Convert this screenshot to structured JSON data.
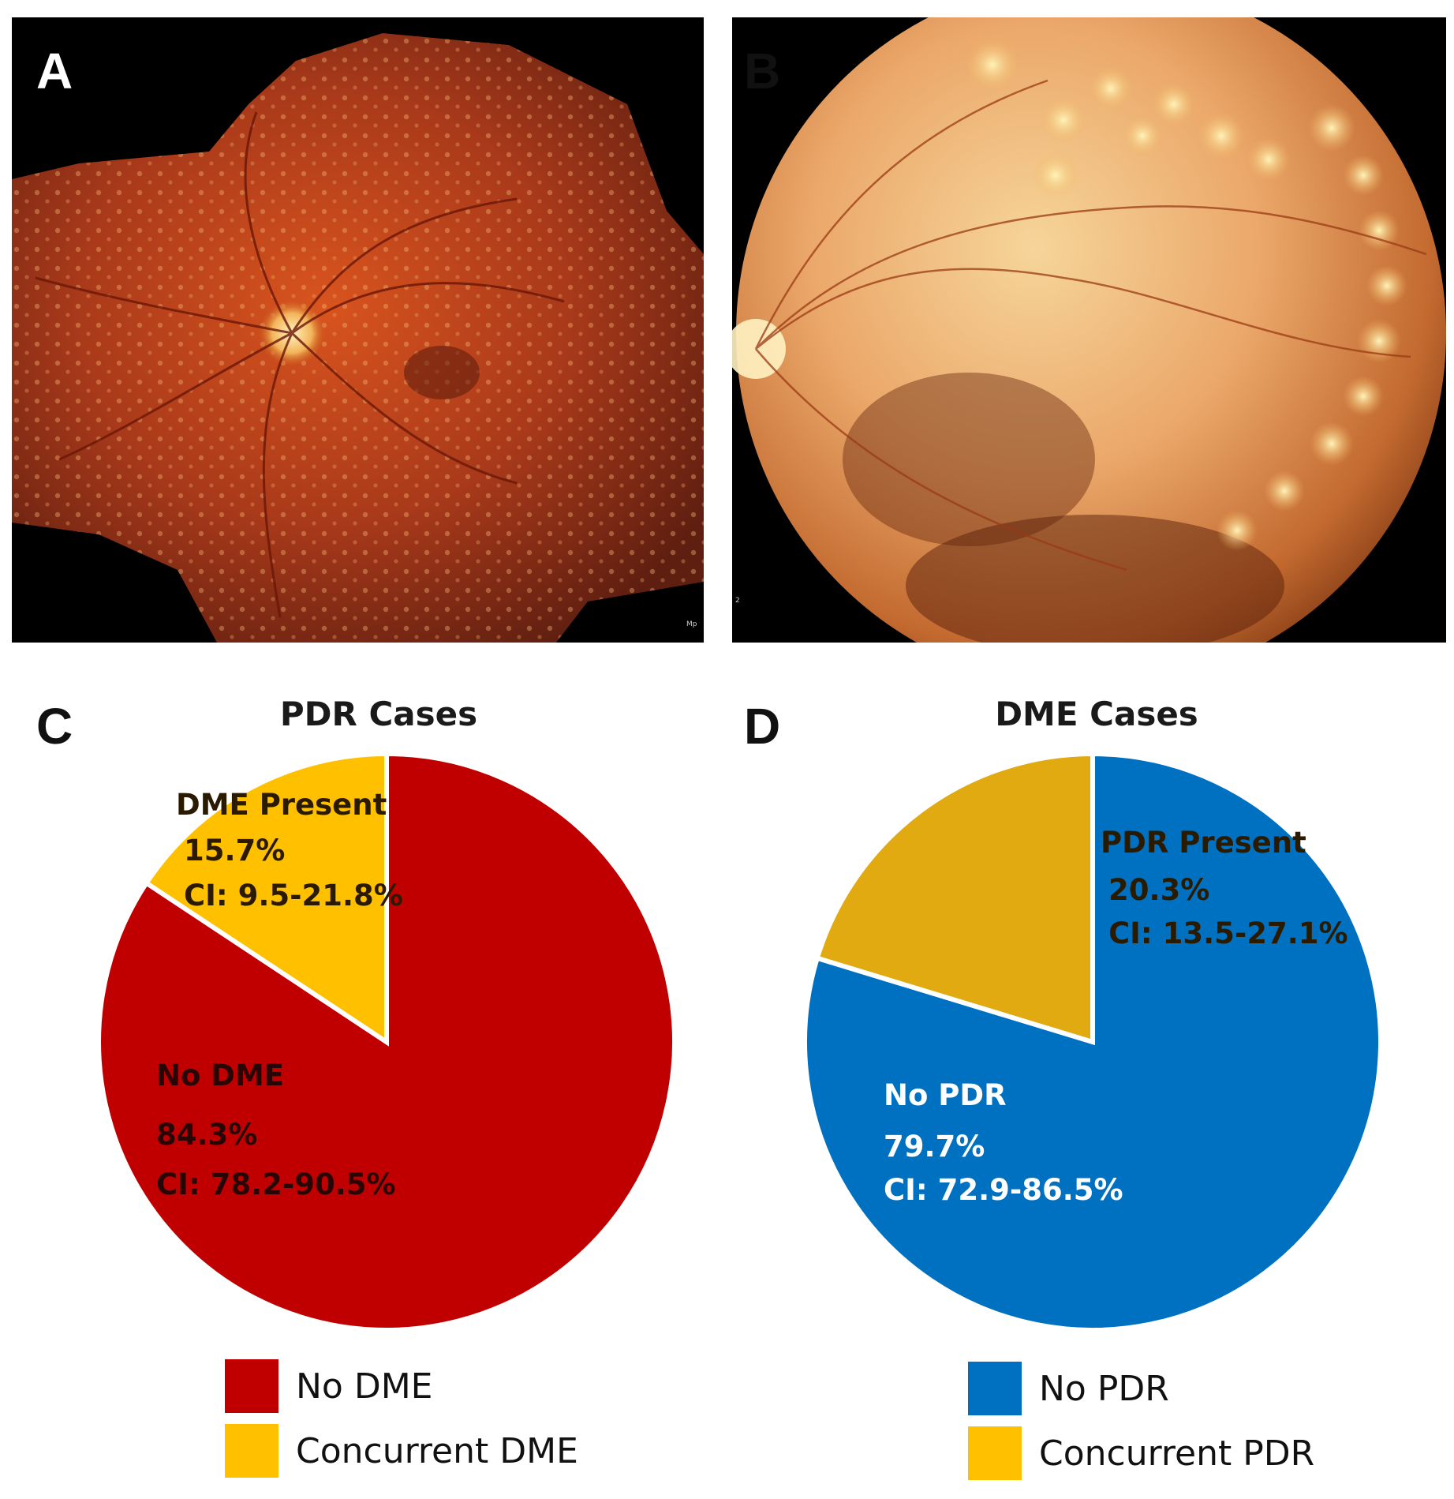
{
  "panels": {
    "a": {
      "letter": "A",
      "corner_text": "Mp"
    },
    "b": {
      "letter": "B",
      "corner_text": "2"
    },
    "c": {
      "letter": "C"
    },
    "d": {
      "letter": "D"
    }
  },
  "chart_data": [
    {
      "type": "pie",
      "title": "PDR Cases",
      "slices": [
        {
          "name": "No DME",
          "label": "No DME",
          "value": 84.3,
          "value_text": "84.3%",
          "ci_text": "CI: 78.2-90.5%",
          "color": "#c00000"
        },
        {
          "name": "Concurrent DME",
          "label": "DME Present",
          "value": 15.7,
          "value_text": "15.7%",
          "ci_text": "CI: 9.5-21.8%",
          "color": "#ffc000"
        }
      ],
      "legend": [
        "No DME",
        "Concurrent DME"
      ],
      "legend_position": "bottom"
    },
    {
      "type": "pie",
      "title": "DME Cases",
      "slices": [
        {
          "name": "No PDR",
          "label": "No PDR",
          "value": 79.7,
          "value_text": "79.7%",
          "ci_text": "CI: 72.9-86.5%",
          "color": "#0070c0"
        },
        {
          "name": "Concurrent PDR",
          "label": "PDR Present",
          "value": 20.3,
          "value_text": "20.3%",
          "ci_text": "CI: 13.5-27.1%",
          "color": "#e0aa10"
        }
      ],
      "legend": [
        "No PDR",
        "Concurrent PDR"
      ],
      "legend_position": "bottom"
    }
  ]
}
